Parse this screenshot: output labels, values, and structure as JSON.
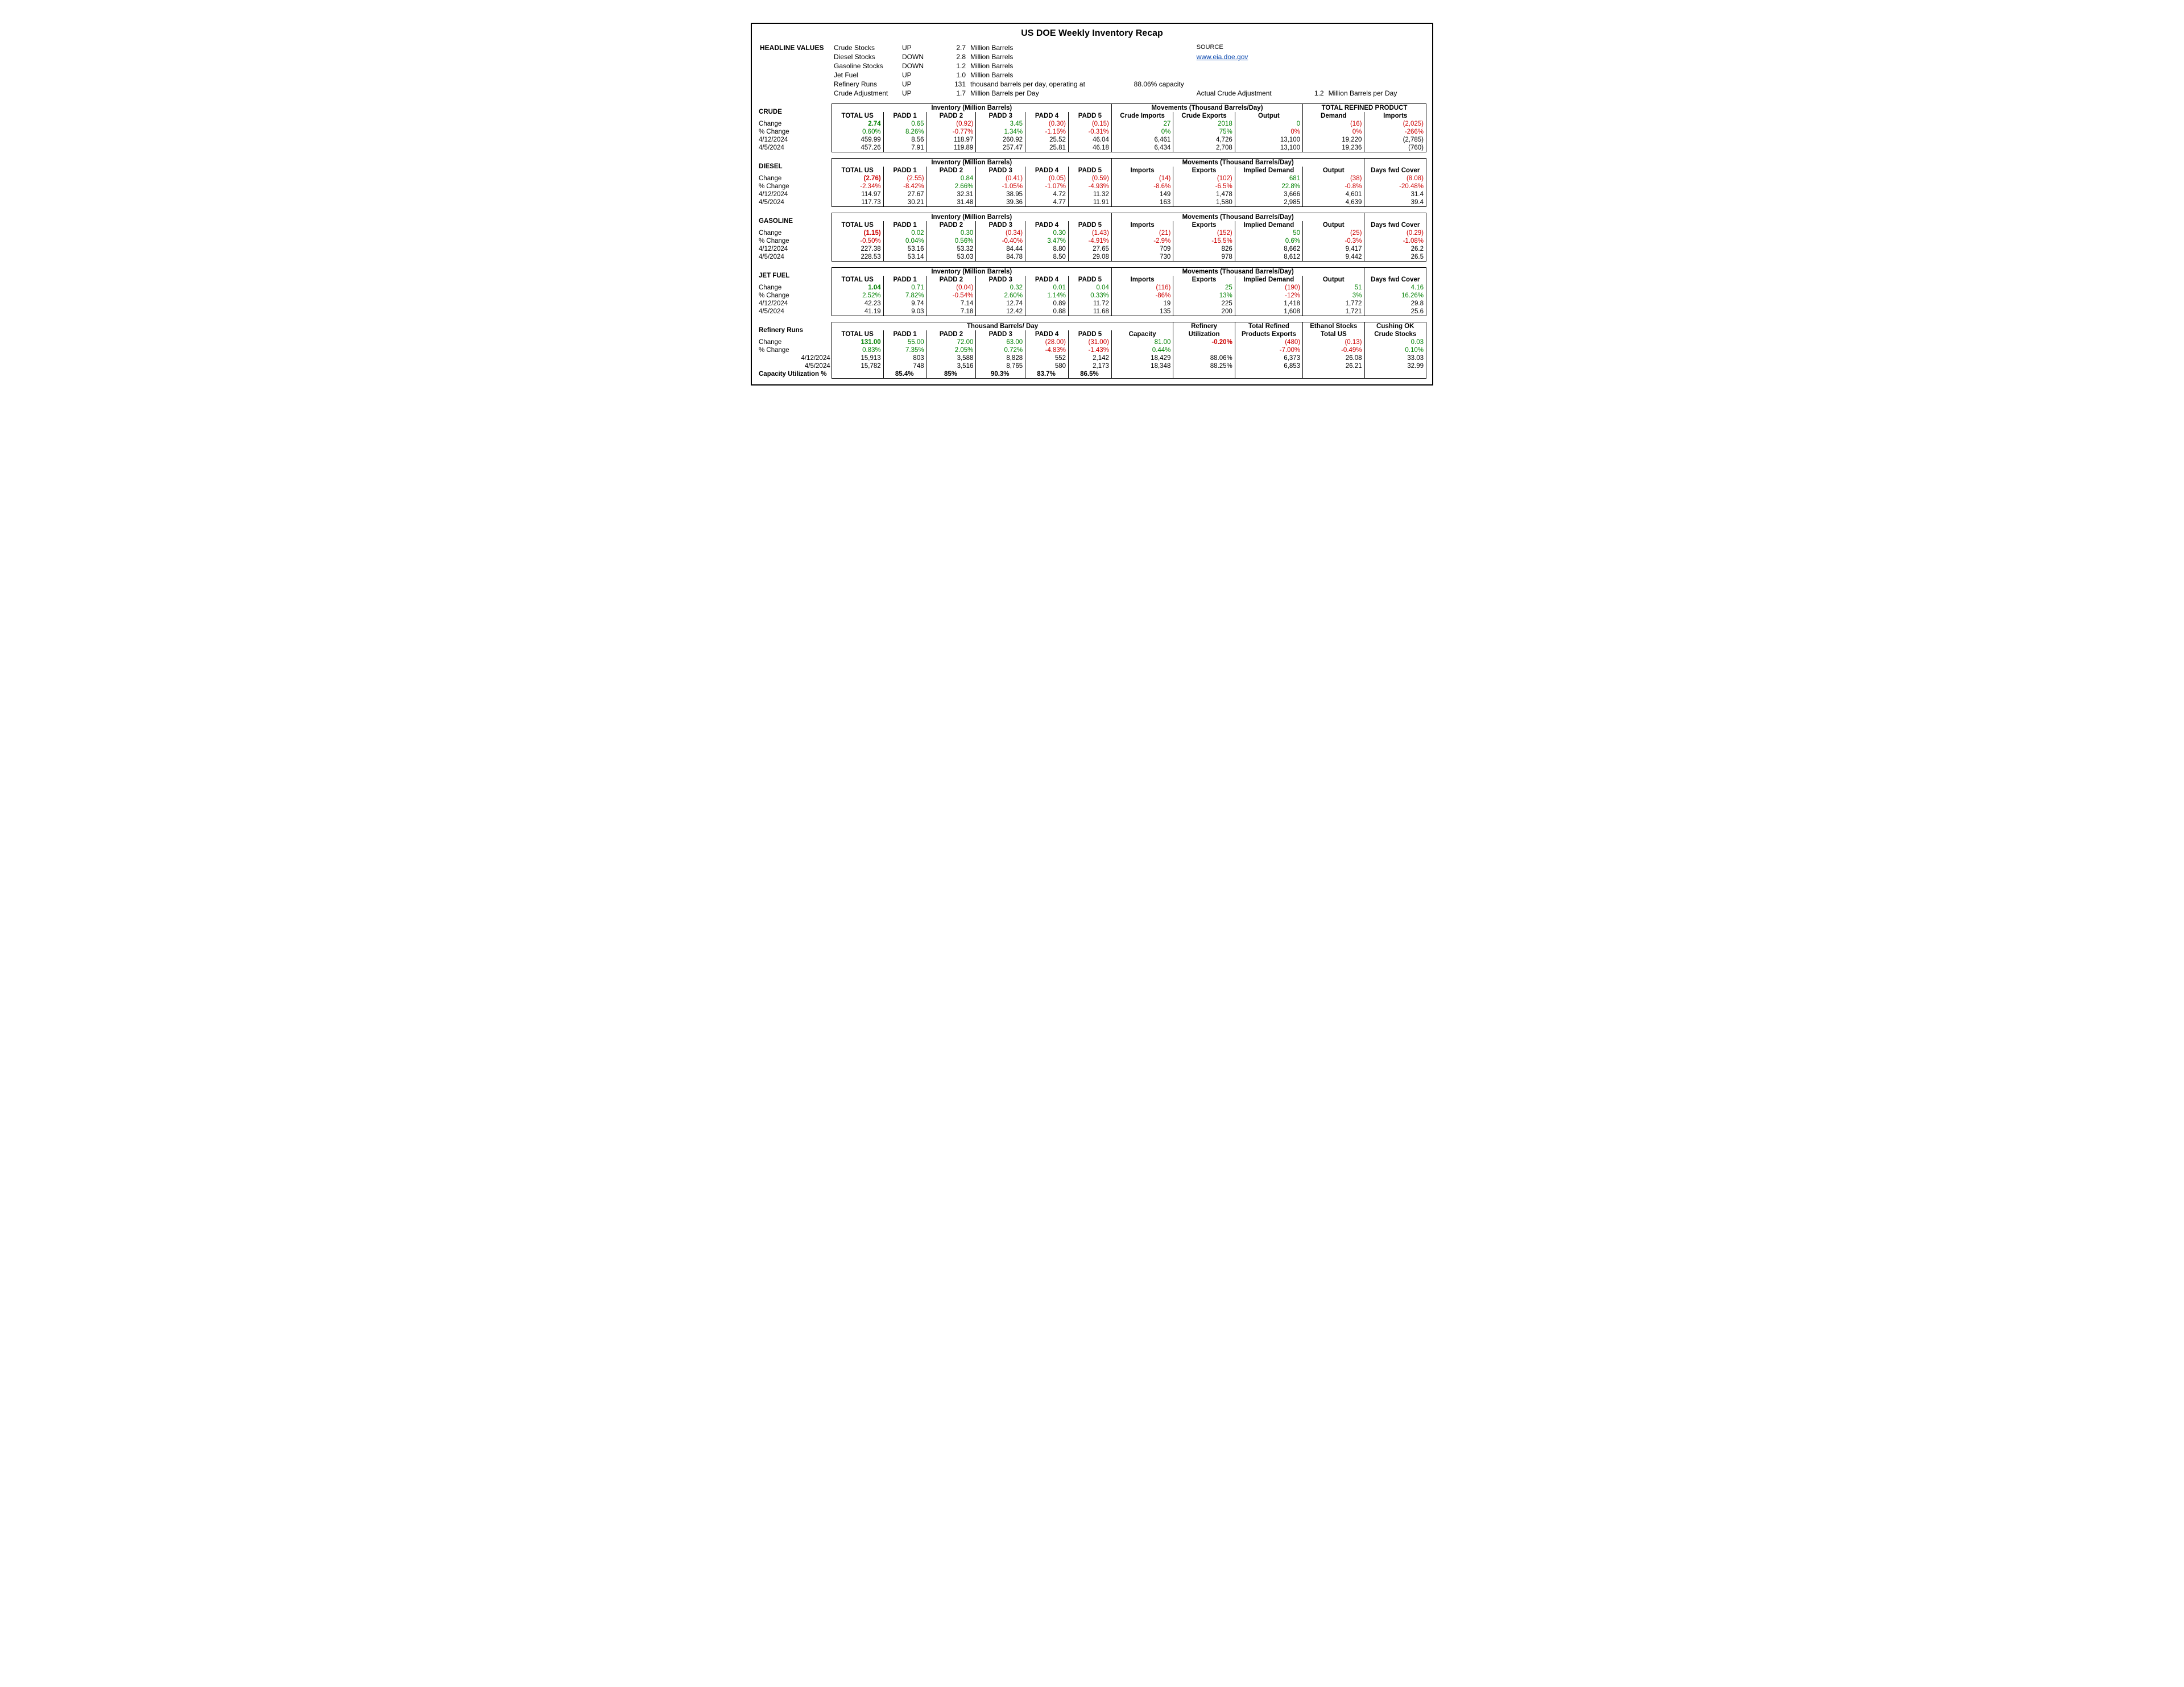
{
  "title": "US DOE Weekly Inventory Recap",
  "source_label": "SOURCE",
  "source_url": "www.eia.doe.gov",
  "headline_label": "HEADLINE VALUES",
  "headline": [
    {
      "name": "Crude Stocks",
      "dir": "UP",
      "val": "2.7",
      "unit": "Million Barrels"
    },
    {
      "name": "Diesel Stocks",
      "dir": "DOWN",
      "val": "2.8",
      "unit": "Million Barrels"
    },
    {
      "name": "Gasoline Stocks",
      "dir": "DOWN",
      "val": "1.2",
      "unit": "Million Barrels"
    },
    {
      "name": "Jet Fuel",
      "dir": "UP",
      "val": "1.0",
      "unit": "Million Barrels"
    },
    {
      "name": "Refinery Runs",
      "dir": "UP",
      "val": "131",
      "unit": "thousand barrels per day, operating at",
      "extra": "88.06% capacity"
    },
    {
      "name": "Crude Adjustment",
      "dir": "UP",
      "val": "1.7",
      "unit": "Million Barrels per Day",
      "aca_label": "Actual Crude Adjustment",
      "aca_val": "1.2",
      "aca_unit": "Million Barrels per Day"
    }
  ],
  "row_labels": {
    "change": "Change",
    "pct": "% Change",
    "d1": "4/12/2024",
    "d2": "4/5/2024",
    "cap": "Capacity Utilization %"
  },
  "crude": {
    "label": "CRUDE",
    "groups": [
      "Inventory (Million Barrels)",
      "Movements (Thousand Barrels/Day)",
      "TOTAL REFINED PRODUCT"
    ],
    "cols": [
      "TOTAL US",
      "PADD 1",
      "PADD 2",
      "PADD 3",
      "PADD 4",
      "PADD 5",
      "Crude Imports",
      "Crude Exports",
      "Output",
      "Demand",
      "Imports"
    ],
    "change": [
      "2.74",
      "0.65",
      "(0.92)",
      "3.45",
      "(0.30)",
      "(0.15)",
      "27",
      "2018",
      "0",
      "(16)",
      "(2,025)"
    ],
    "change_cls": [
      "pos bold big",
      "pos",
      "neg",
      "pos",
      "neg",
      "neg",
      "pos",
      "pos",
      "pos",
      "neg",
      "neg"
    ],
    "pct": [
      "0.60%",
      "8.26%",
      "-0.77%",
      "1.34%",
      "-1.15%",
      "-0.31%",
      "0%",
      "75%",
      "0%",
      "0%",
      "-266%"
    ],
    "pct_cls": [
      "pos",
      "pos",
      "neg",
      "pos",
      "neg",
      "neg",
      "pos",
      "pos",
      "neg",
      "neg",
      "neg"
    ],
    "d1": [
      "459.99",
      "8.56",
      "118.97",
      "260.92",
      "25.52",
      "46.04",
      "6,461",
      "4,726",
      "13,100",
      "19,220",
      "(2,785)"
    ],
    "d2": [
      "457.26",
      "7.91",
      "119.89",
      "257.47",
      "25.81",
      "46.18",
      "6,434",
      "2,708",
      "13,100",
      "19,236",
      "(760)"
    ]
  },
  "diesel": {
    "label": "DIESEL",
    "groups": [
      "Inventory (Million Barrels)",
      "Movements (Thousand Barrels/Day)"
    ],
    "cols": [
      "TOTAL US",
      "PADD 1",
      "PADD 2",
      "PADD 3",
      "PADD 4",
      "PADD 5",
      "Imports",
      "Exports",
      "Implied Demand",
      "Output",
      "Days fwd Cover"
    ],
    "change": [
      "(2.76)",
      "(2.55)",
      "0.84",
      "(0.41)",
      "(0.05)",
      "(0.59)",
      "(14)",
      "(102)",
      "681",
      "(38)",
      "(8.08)"
    ],
    "change_cls": [
      "neg bold big",
      "neg",
      "pos",
      "neg",
      "neg",
      "neg",
      "neg",
      "neg",
      "pos",
      "neg",
      "neg"
    ],
    "pct": [
      "-2.34%",
      "-8.42%",
      "2.66%",
      "-1.05%",
      "-1.07%",
      "-4.93%",
      "-8.6%",
      "-6.5%",
      "22.8%",
      "-0.8%",
      "-20.48%"
    ],
    "pct_cls": [
      "neg",
      "neg",
      "pos",
      "neg",
      "neg",
      "neg",
      "neg",
      "neg",
      "pos",
      "neg",
      "neg"
    ],
    "d1": [
      "114.97",
      "27.67",
      "32.31",
      "38.95",
      "4.72",
      "11.32",
      "149",
      "1,478",
      "3,666",
      "4,601",
      "31.4"
    ],
    "d2": [
      "117.73",
      "30.21",
      "31.48",
      "39.36",
      "4.77",
      "11.91",
      "163",
      "1,580",
      "2,985",
      "4,639",
      "39.4"
    ]
  },
  "gasoline": {
    "label": "GASOLINE",
    "groups": [
      "Inventory (Million Barrels)",
      "Movements (Thousand Barrels/Day)"
    ],
    "cols": [
      "TOTAL US",
      "PADD 1",
      "PADD 2",
      "PADD 3",
      "PADD 4",
      "PADD 5",
      "Imports",
      "Exports",
      "Implied Demand",
      "Output",
      "Days fwd Cover"
    ],
    "change": [
      "(1.15)",
      "0.02",
      "0.30",
      "(0.34)",
      "0.30",
      "(1.43)",
      "(21)",
      "(152)",
      "50",
      "(25)",
      "(0.29)"
    ],
    "change_cls": [
      "neg bold big",
      "pos",
      "pos",
      "neg",
      "pos",
      "neg",
      "neg",
      "neg",
      "pos",
      "neg",
      "neg"
    ],
    "pct": [
      "-0.50%",
      "0.04%",
      "0.56%",
      "-0.40%",
      "3.47%",
      "-4.91%",
      "-2.9%",
      "-15.5%",
      "0.6%",
      "-0.3%",
      "-1.08%"
    ],
    "pct_cls": [
      "neg",
      "pos",
      "pos",
      "neg",
      "pos",
      "neg",
      "neg",
      "neg",
      "pos",
      "neg",
      "neg"
    ],
    "d1": [
      "227.38",
      "53.16",
      "53.32",
      "84.44",
      "8.80",
      "27.65",
      "709",
      "826",
      "8,662",
      "9,417",
      "26.2"
    ],
    "d2": [
      "228.53",
      "53.14",
      "53.03",
      "84.78",
      "8.50",
      "29.08",
      "730",
      "978",
      "8,612",
      "9,442",
      "26.5"
    ]
  },
  "jetfuel": {
    "label": "JET FUEL",
    "groups": [
      "Inventory (Million Barrels)",
      "Movements (Thousand Barrels/Day)"
    ],
    "cols": [
      "TOTAL US",
      "PADD 1",
      "PADD 2",
      "PADD 3",
      "PADD 4",
      "PADD 5",
      "Imports",
      "Exports",
      "Implied Demand",
      "Output",
      "Days fwd Cover"
    ],
    "change": [
      "1.04",
      "0.71",
      "(0.04)",
      "0.32",
      "0.01",
      "0.04",
      "(116)",
      "25",
      "(190)",
      "51",
      "4.16"
    ],
    "change_cls": [
      "pos bold big",
      "pos",
      "neg",
      "pos",
      "pos",
      "pos",
      "neg",
      "pos",
      "neg",
      "pos",
      "pos"
    ],
    "pct": [
      "2.52%",
      "7.82%",
      "-0.54%",
      "2.60%",
      "1.14%",
      "0.33%",
      "-86%",
      "13%",
      "-12%",
      "3%",
      "16.26%"
    ],
    "pct_cls": [
      "pos",
      "pos",
      "neg",
      "pos",
      "pos",
      "pos",
      "neg",
      "pos",
      "neg",
      "pos",
      "pos"
    ],
    "d1": [
      "42.23",
      "9.74",
      "7.14",
      "12.74",
      "0.89",
      "11.72",
      "19",
      "225",
      "1,418",
      "1,772",
      "29.8"
    ],
    "d2": [
      "41.19",
      "9.03",
      "7.18",
      "12.42",
      "0.88",
      "11.68",
      "135",
      "200",
      "1,608",
      "1,721",
      "25.6"
    ]
  },
  "refinery": {
    "label": "Refinery Runs",
    "group": "Thousand Barrels/ Day",
    "extra_hdrs": {
      "util": "Refinery",
      "trpe_top": "Total Refined",
      "eth": "Ethanol Stocks",
      "cush": "Cushing OK"
    },
    "cols": [
      "TOTAL US",
      "PADD 1",
      "PADD 2",
      "PADD 3",
      "PADD 4",
      "PADD 5",
      "Capacity",
      "Utilization",
      "Products Exports",
      "Total US",
      "Crude Stocks"
    ],
    "change": [
      "131.00",
      "55.00",
      "72.00",
      "63.00",
      "(28.00)",
      "(31.00)",
      "81.00",
      "-0.20%",
      "(480)",
      "(0.13)",
      "0.03"
    ],
    "change_cls": [
      "pos bold big",
      "pos",
      "pos",
      "pos",
      "neg",
      "neg",
      "pos",
      "neg bold big",
      "neg",
      "neg",
      "pos"
    ],
    "pct": [
      "0.83%",
      "7.35%",
      "2.05%",
      "0.72%",
      "-4.83%",
      "-1.43%",
      "0.44%",
      "",
      "-7.00%",
      "-0.49%",
      "0.10%"
    ],
    "pct_cls": [
      "pos",
      "pos",
      "pos",
      "pos",
      "neg",
      "neg",
      "pos",
      "",
      "neg",
      "neg",
      "pos"
    ],
    "d1": [
      "15,913",
      "803",
      "3,588",
      "8,828",
      "552",
      "2,142",
      "18,429",
      "88.06%",
      "6,373",
      "26.08",
      "33.03"
    ],
    "d2": [
      "15,782",
      "748",
      "3,516",
      "8,765",
      "580",
      "2,173",
      "18,348",
      "88.25%",
      "6,853",
      "26.21",
      "32.99"
    ],
    "cap": [
      "",
      "85.4%",
      "85%",
      "90.3%",
      "83.7%",
      "86.5%",
      "",
      "",
      "",
      "",
      ""
    ]
  }
}
